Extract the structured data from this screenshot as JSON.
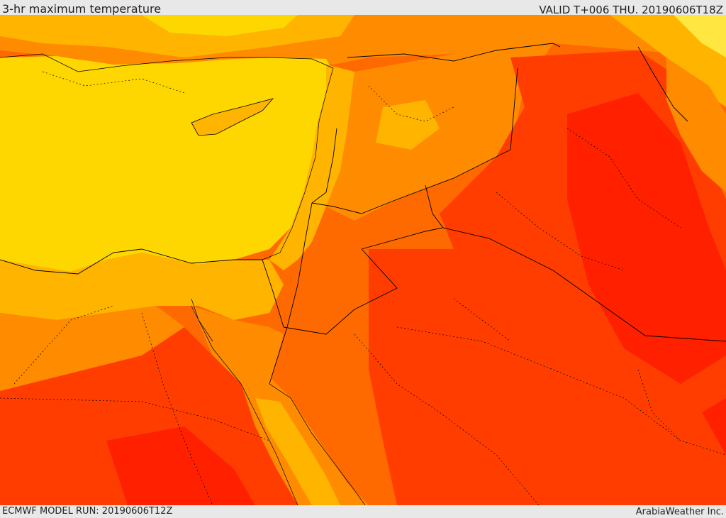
{
  "header": {
    "title": "3-hr maximum temperature",
    "valid": "VALID T+006 THU. 20190606T18Z"
  },
  "footer": {
    "model_run": "ECMWF MODEL RUN: 20190606T12Z",
    "credit": "ArabiaWeather Inc."
  },
  "palette": {
    "sea_yellow": "#ffd700",
    "gold": "#ffb400",
    "orange": "#ff8c00",
    "dark_orange": "#ff6a00",
    "red_orange": "#ff3d00",
    "red": "#ff2000",
    "light_yellow": "#ffe640",
    "border": "#000000"
  }
}
